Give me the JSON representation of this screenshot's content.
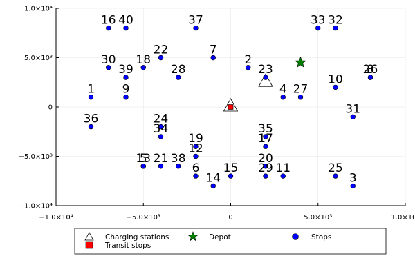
{
  "chart_data": {
    "type": "scatter",
    "title": "",
    "xlabel": "",
    "ylabel": "",
    "xlim": [
      -10000,
      10000
    ],
    "ylim": [
      -10000,
      10000
    ],
    "grid": true,
    "x_ticks": [
      {
        "value": -10000,
        "label": "−1.0×10⁴"
      },
      {
        "value": -5000,
        "label": "−5.0×10³"
      },
      {
        "value": 0,
        "label": "0"
      },
      {
        "value": 5000,
        "label": "5.0×10³"
      },
      {
        "value": 10000,
        "label": "1.0×10⁴"
      }
    ],
    "y_ticks": [
      {
        "value": 10000,
        "label": "1.0×10⁴"
      },
      {
        "value": 5000,
        "label": "5.0×10³"
      },
      {
        "value": 0,
        "label": "0"
      },
      {
        "value": -5000,
        "label": "−5.0×10³"
      },
      {
        "value": -10000,
        "label": "−1.0×10⁴"
      }
    ],
    "legend_position": "bottom",
    "colors": {
      "stops": "#0000ff",
      "transit": "#ff0000",
      "depot": "#008000",
      "charging": "#ffffff"
    },
    "series": [
      {
        "name": "Charging stations",
        "marker": "triangle",
        "points": [
          {
            "x": 0,
            "y": 0
          },
          {
            "x": 2000,
            "y": 2500
          }
        ]
      },
      {
        "name": "Transit stops",
        "marker": "square",
        "points": [
          {
            "x": 0,
            "y": 0
          }
        ]
      },
      {
        "name": "Depot",
        "marker": "star",
        "points": [
          {
            "x": 4000,
            "y": 4500
          }
        ]
      },
      {
        "name": "Stops",
        "marker": "circle",
        "points": [
          {
            "x": 1000,
            "y": 4000,
            "label": "2"
          },
          {
            "x": 7000,
            "y": -8000,
            "label": "3"
          },
          {
            "x": 3000,
            "y": 1000,
            "label": "4"
          },
          {
            "x": -2000,
            "y": -7000,
            "label": "6"
          },
          {
            "x": -1000,
            "y": 5000,
            "label": "7"
          },
          {
            "x": 8000,
            "y": 3000,
            "label": "8"
          },
          {
            "x": -6000,
            "y": 1000,
            "label": "9"
          },
          {
            "x": 6000,
            "y": 2000,
            "label": "10"
          },
          {
            "x": 3000,
            "y": -7000,
            "label": "11"
          },
          {
            "x": -2000,
            "y": -5000,
            "label": "12"
          },
          {
            "x": -5000,
            "y": -6000,
            "label": "13"
          },
          {
            "x": -1000,
            "y": -8000,
            "label": "14"
          },
          {
            "x": 0,
            "y": -7000,
            "label": "15"
          },
          {
            "x": -7000,
            "y": 8000,
            "label": "16"
          },
          {
            "x": 2000,
            "y": -4000,
            "label": "17"
          },
          {
            "x": -5000,
            "y": 4000,
            "label": "18"
          },
          {
            "x": -2000,
            "y": -4000,
            "label": "19"
          },
          {
            "x": 2000,
            "y": -6000,
            "label": "20"
          },
          {
            "x": -4000,
            "y": 5000,
            "label": "22"
          },
          {
            "x": 2000,
            "y": 3000,
            "label": "23"
          },
          {
            "x": -4000,
            "y": -2000,
            "label": "24"
          },
          {
            "x": 6000,
            "y": -7000,
            "label": "25"
          },
          {
            "x": 4000,
            "y": 1000,
            "label": "27"
          },
          {
            "x": -3000,
            "y": 3000,
            "label": "28"
          },
          {
            "x": 2000,
            "y": -7000,
            "label": "29"
          },
          {
            "x": -7000,
            "y": 4000,
            "label": "30"
          },
          {
            "x": 7000,
            "y": -1000,
            "label": "31"
          },
          {
            "x": 6000,
            "y": 8000,
            "label": "32"
          },
          {
            "x": 5000,
            "y": 8000,
            "label": "33"
          },
          {
            "x": -4000,
            "y": -3000,
            "label": "34"
          },
          {
            "x": 2000,
            "y": -3000,
            "label": "35"
          },
          {
            "x": -8000,
            "y": -2000,
            "label": "36"
          },
          {
            "x": -2000,
            "y": 8000,
            "label": "37"
          },
          {
            "x": -3000,
            "y": -6000,
            "label": "38"
          },
          {
            "x": -6000,
            "y": 3000,
            "label": "39"
          },
          {
            "x": -6000,
            "y": 8000,
            "label": "40"
          },
          {
            "x": -8000,
            "y": 1000,
            "label": "1"
          },
          {
            "x": -4000,
            "y": -6000,
            "label": "21"
          },
          {
            "x": -5000,
            "y": -6000,
            "label": "5"
          },
          {
            "x": 8000,
            "y": 3000,
            "label": "26"
          }
        ]
      }
    ]
  }
}
